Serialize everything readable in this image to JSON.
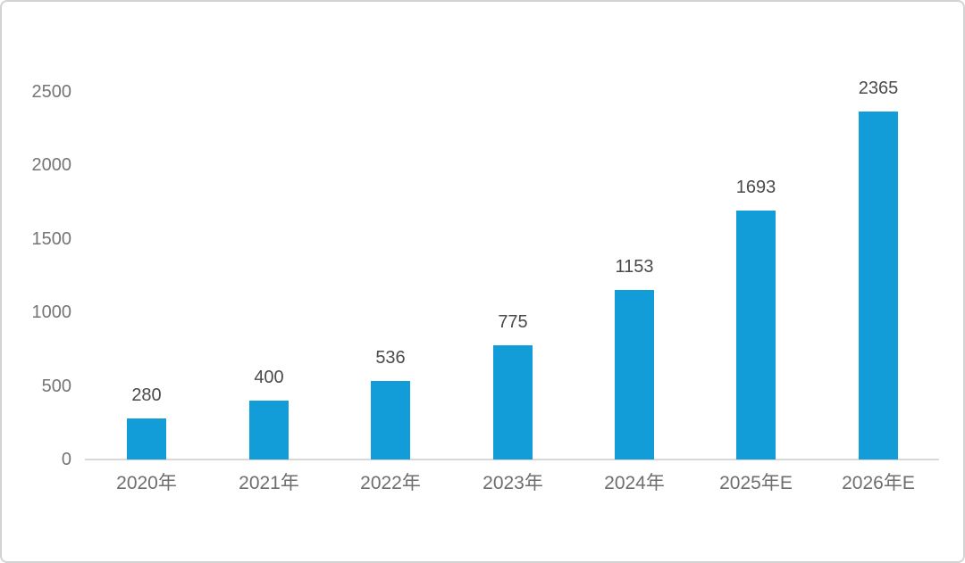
{
  "chart_data": {
    "type": "bar",
    "categories": [
      "2020年",
      "2021年",
      "2022年",
      "2023年",
      "2024年",
      "2025年E",
      "2026年E"
    ],
    "values": [
      280,
      400,
      536,
      775,
      1153,
      1693,
      2365
    ],
    "title": "",
    "xlabel": "",
    "ylabel": "",
    "ylim": [
      0,
      2500
    ],
    "yticks": [
      0,
      500,
      1000,
      1500,
      2000,
      2500
    ],
    "grid": false,
    "legend": "none",
    "data_labels": true,
    "bar_color": "#129dd9"
  },
  "colors": {
    "bar": "#129dd9",
    "axis_line": "#d9d9d9",
    "y_tick_label": "#757575",
    "x_tick_label": "#6e6e6e",
    "data_label": "#4a4a4a",
    "frame_border": "#d3d3d3",
    "background": "#ffffff"
  }
}
